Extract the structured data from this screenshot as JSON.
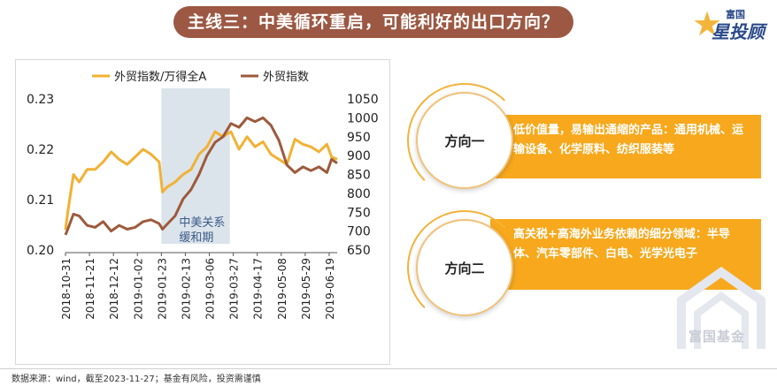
{
  "title": "主线三：中美循环重启，可能利好的出口方向？",
  "logo": {
    "top": "富国",
    "main": "星投顾"
  },
  "chart_data": {
    "type": "line",
    "x_ticks": [
      "2018-10-31",
      "2018-11-21",
      "2018-12-12",
      "2019-01-02",
      "2019-01-23",
      "2019-02-13",
      "2019-03-06",
      "2019-03-27",
      "2019-04-17",
      "2019-05-08",
      "2019-05-29",
      "2019-06-19"
    ],
    "x_start": "2018-10-31",
    "x_end": "2019-06-26",
    "y_left": {
      "ticks": [
        "0.20",
        "0.21",
        "0.22",
        "0.23"
      ],
      "range": [
        0.2,
        0.23
      ]
    },
    "y_right": {
      "ticks": [
        "650",
        "700",
        "750",
        "800",
        "850",
        "900",
        "950",
        "1000",
        "1050"
      ],
      "range": [
        650,
        1050
      ]
    },
    "legend_position": "top",
    "shade": {
      "start": "2019-01-23",
      "end": "2019-03-24",
      "label": "中美关系缓和期"
    },
    "series": [
      {
        "name": "外贸指数/万得全A",
        "axis": "left",
        "color": "#f2b134",
        "x": [
          "2018-10-31",
          "2018-11-02",
          "2018-11-07",
          "2018-11-12",
          "2018-11-19",
          "2018-11-26",
          "2018-12-03",
          "2018-12-10",
          "2018-12-17",
          "2018-12-24",
          "2018-12-31",
          "2019-01-07",
          "2019-01-14",
          "2019-01-21",
          "2019-01-24",
          "2019-01-28",
          "2019-02-04",
          "2019-02-11",
          "2019-02-18",
          "2019-02-25",
          "2019-03-04",
          "2019-03-11",
          "2019-03-18",
          "2019-03-25",
          "2019-04-01",
          "2019-04-08",
          "2019-04-15",
          "2019-04-22",
          "2019-04-29",
          "2019-05-06",
          "2019-05-13",
          "2019-05-20",
          "2019-05-27",
          "2019-06-03",
          "2019-06-10",
          "2019-06-17",
          "2019-06-21",
          "2019-06-26"
        ],
        "values": [
          0.204,
          0.2075,
          0.215,
          0.2135,
          0.216,
          0.216,
          0.2175,
          0.2195,
          0.218,
          0.217,
          0.2185,
          0.22,
          0.219,
          0.2175,
          0.2115,
          0.2125,
          0.2135,
          0.215,
          0.216,
          0.219,
          0.2205,
          0.2235,
          0.2225,
          0.2235,
          0.22,
          0.2225,
          0.2205,
          0.2215,
          0.219,
          0.218,
          0.217,
          0.222,
          0.221,
          0.2205,
          0.2195,
          0.221,
          0.2185,
          0.218
        ]
      },
      {
        "name": "外贸指数",
        "axis": "right",
        "color": "#9d5a3c",
        "x": [
          "2018-10-31",
          "2018-11-02",
          "2018-11-07",
          "2018-11-12",
          "2018-11-19",
          "2018-11-26",
          "2018-12-03",
          "2018-12-10",
          "2018-12-17",
          "2018-12-24",
          "2018-12-31",
          "2019-01-07",
          "2019-01-14",
          "2019-01-21",
          "2019-01-24",
          "2019-01-28",
          "2019-02-04",
          "2019-02-11",
          "2019-02-18",
          "2019-02-25",
          "2019-03-04",
          "2019-03-11",
          "2019-03-18",
          "2019-03-25",
          "2019-04-01",
          "2019-04-08",
          "2019-04-15",
          "2019-04-22",
          "2019-04-29",
          "2019-05-06",
          "2019-05-13",
          "2019-05-20",
          "2019-05-27",
          "2019-06-03",
          "2019-06-10",
          "2019-06-17",
          "2019-06-21",
          "2019-06-26"
        ],
        "values": [
          690,
          705,
          745,
          740,
          715,
          710,
          725,
          700,
          715,
          705,
          710,
          725,
          730,
          720,
          705,
          718,
          740,
          785,
          810,
          850,
          900,
          935,
          950,
          985,
          975,
          1000,
          990,
          1000,
          980,
          940,
          875,
          855,
          870,
          860,
          870,
          855,
          890,
          880
        ]
      }
    ]
  },
  "directions": [
    {
      "label": "方向一",
      "text": "低价值量，易输出通缩的产品：通用机械、运输设备、化学原料、纺织服装等"
    },
    {
      "label": "方向二",
      "text": "高关税+高海外业务依赖的细分领域：半导体、汽车零部件、白电、光学光电子"
    }
  ],
  "watermark": "富国基金",
  "footer": "数据来源：wind，截至2023-11-27；基金有风险，投资需谨慎"
}
